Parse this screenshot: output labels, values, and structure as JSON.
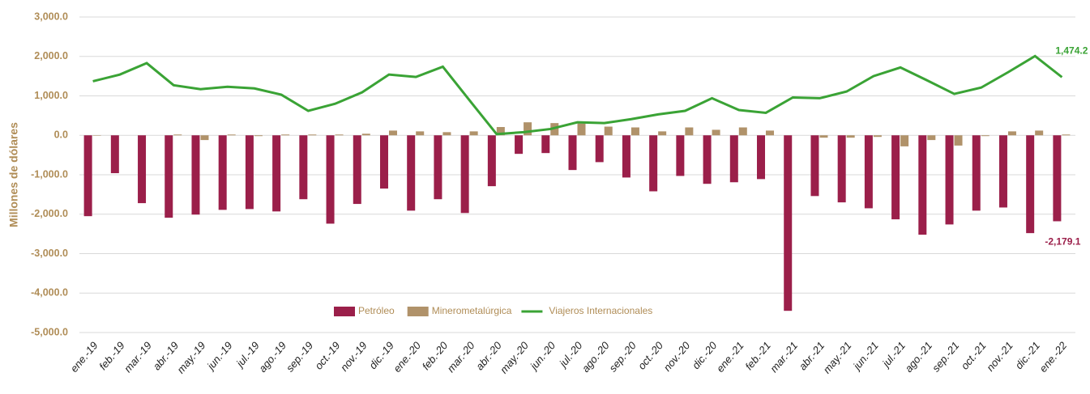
{
  "chart_data": {
    "type": "bar_line",
    "y_label": "Millones de dólares",
    "categories": [
      "ene.-19",
      "feb.-19",
      "mar.-19",
      "abr.-19",
      "may.-19",
      "jun.-19",
      "jul.-19",
      "ago.-19",
      "sep.-19",
      "oct.-19",
      "nov.-19",
      "dic.-19",
      "ene.-20",
      "feb.-20",
      "mar.-20",
      "abr.-20",
      "may.-20",
      "jun.-20",
      "jul.-20",
      "ago.-20",
      "sep.-20",
      "oct.-20",
      "nov.-20",
      "dic.-20",
      "ene.-21",
      "feb.-21",
      "mar.-21",
      "abr.-21",
      "may.-21",
      "jun.-21",
      "jul.-21",
      "ago.-21",
      "sep.-21",
      "oct.-21",
      "nov.-21",
      "dic.-21",
      "ene.-22"
    ],
    "series": [
      {
        "name": "Petróleo",
        "color": "#9b1f4a",
        "kind": "bar",
        "values": [
          -2050,
          -960,
          -1720,
          -2090,
          -2010,
          -1890,
          -1870,
          -1930,
          -1620,
          -2240,
          -1740,
          -1350,
          -1910,
          -1620,
          -1970,
          -1290,
          -470,
          -450,
          -880,
          -680,
          -1070,
          -1420,
          -1030,
          -1230,
          -1190,
          -1110,
          -4450,
          -1540,
          -1700,
          -1850,
          -2130,
          -2520,
          -2260,
          -1910,
          -1830,
          -2480,
          -2179.1
        ],
        "value_labels": [
          null,
          null,
          null,
          null,
          null,
          null,
          null,
          null,
          null,
          null,
          null,
          null,
          null,
          null,
          null,
          null,
          null,
          null,
          null,
          null,
          null,
          null,
          null,
          null,
          null,
          null,
          null,
          null,
          null,
          null,
          null,
          null,
          null,
          null,
          null,
          null,
          "-2,179.1"
        ]
      },
      {
        "name": "Minerometalúrgica",
        "color": "#b0926a",
        "kind": "bar",
        "values": [
          -10,
          0,
          0,
          20,
          -120,
          20,
          -20,
          20,
          20,
          20,
          40,
          120,
          100,
          80,
          100,
          210,
          330,
          310,
          300,
          220,
          200,
          100,
          200,
          140,
          200,
          120,
          0,
          -60,
          -60,
          -40,
          -280,
          -120,
          -260,
          -20,
          100,
          120,
          20
        ]
      },
      {
        "name": "Viajeros Internacionales",
        "color": "#3aa335",
        "kind": "line",
        "values": [
          1370,
          1540,
          1830,
          1270,
          1170,
          1230,
          1190,
          1030,
          620,
          800,
          1090,
          1540,
          1480,
          1740,
          880,
          30,
          80,
          160,
          330,
          310,
          410,
          530,
          620,
          940,
          640,
          570,
          960,
          940,
          1110,
          1500,
          1720,
          1390,
          1050,
          1210,
          1600,
          2010,
          1474.2
        ],
        "value_labels": [
          null,
          null,
          null,
          null,
          null,
          null,
          null,
          null,
          null,
          null,
          null,
          null,
          null,
          null,
          null,
          null,
          null,
          null,
          null,
          null,
          null,
          null,
          null,
          null,
          null,
          null,
          null,
          null,
          null,
          null,
          null,
          null,
          null,
          null,
          null,
          null,
          "1,474.2"
        ]
      }
    ],
    "ylim": [
      -5000,
      3000
    ],
    "yticks": [
      {
        "value": -5000,
        "label": "-5,000.0"
      },
      {
        "value": -4000,
        "label": "-4,000.0"
      },
      {
        "value": -3000,
        "label": "-3,000.0"
      },
      {
        "value": -2000,
        "label": "-2,000.0"
      },
      {
        "value": -1000,
        "label": "-1,000.0"
      },
      {
        "value": 0,
        "label": "0.0"
      },
      {
        "value": 1000,
        "label": "1,000.0"
      },
      {
        "value": 2000,
        "label": "2,000.0"
      },
      {
        "value": 3000,
        "label": "3,000.0"
      }
    ],
    "grid": true,
    "legend": "bottom"
  }
}
